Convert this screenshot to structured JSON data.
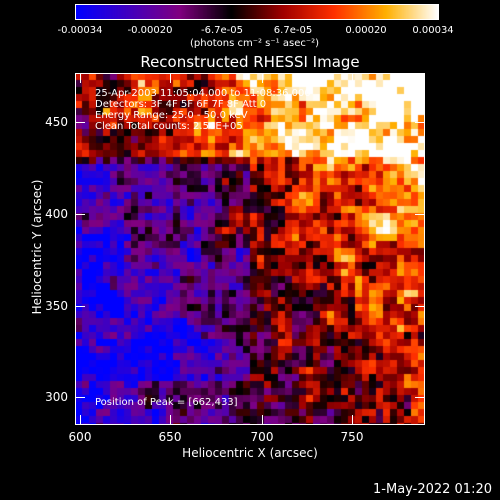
{
  "colorbar": {
    "ticks": [
      "-0.00034",
      "-0.00020",
      "-6.7e-05",
      "6.7e-05",
      "0.00020",
      "0.00034"
    ],
    "units": "(photons cm⁻² s⁻¹ asec⁻²)",
    "range": [
      -0.00034,
      0.00034
    ]
  },
  "title": "Reconstructed RHESSI Image",
  "annotations": {
    "time_range": "25-Apr-2003 11:05:04.000 to 11:08:36.000",
    "detectors": "Detectors: 3F 4F 5F 6F 7F 8F  Att 0",
    "energy_range": "Energy Range: 25.0 - 50.0 keV",
    "clean": "Clean     Total counts: 2.56E+05",
    "peak": "Position of Peak = [662,433]"
  },
  "chart_data": {
    "type": "heatmap",
    "title": "Reconstructed RHESSI Image",
    "xlabel": "Heliocentric X (arcsec)",
    "ylabel": "Heliocentric Y (arcsec)",
    "xlim": [
      600,
      790
    ],
    "ylim": [
      285,
      476
    ],
    "x_ticks": [
      "600",
      "650",
      "700",
      "750"
    ],
    "y_ticks": [
      "300",
      "350",
      "400",
      "450"
    ],
    "peak_position": [
      662,
      433
    ],
    "colormap": "blue-purple-red-yellow-white",
    "colormap_colors": [
      "#0000ff",
      "#4000c0",
      "#800080",
      "#000000",
      "#a00000",
      "#ff3000",
      "#ffb000",
      "#ffffff"
    ]
  },
  "footer": "1-May-2022 01:20"
}
